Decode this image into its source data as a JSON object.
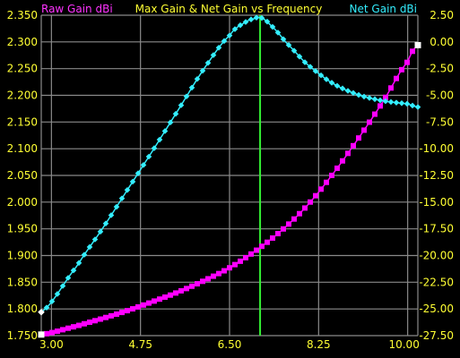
{
  "chart_data": {
    "type": "line",
    "title": "Max Gain & Net Gain vs Frequency",
    "left_axis_label": "Raw Gain dBi",
    "right_axis_label": "Net Gain dBi",
    "x_range": [
      2.8,
      10.2
    ],
    "x_ticks": [
      "3.00",
      "4.75",
      "6.50",
      "8.25",
      "10.00"
    ],
    "x_tick_values": [
      3.0,
      4.75,
      6.5,
      8.25,
      10.0
    ],
    "left_range": [
      1.75,
      2.35
    ],
    "left_ticks": [
      "2.350",
      "2.300",
      "2.250",
      "2.200",
      "2.150",
      "2.100",
      "2.050",
      "2.000",
      "1.950",
      "1.900",
      "1.850",
      "1.800",
      "1.750"
    ],
    "right_range": [
      -27.5,
      2.5
    ],
    "right_ticks": [
      "2.50",
      "0.00",
      "-2.50",
      "-5.00",
      "-7.50",
      "-10.00",
      "-12.50",
      "-15.00",
      "-17.50",
      "-20.00",
      "-22.50",
      "-25.00",
      "-27.50"
    ],
    "grid": true,
    "marker_x": 7.1,
    "series": [
      {
        "axis": "left",
        "color": "#ff00ff",
        "marker": "square",
        "x": [
          2.8,
          3.5,
          4.0,
          4.5,
          5.0,
          5.5,
          6.0,
          6.5,
          7.0,
          7.5,
          8.0,
          8.5,
          9.0,
          9.5,
          10.0,
          10.2
        ],
        "values": [
          1.752,
          1.768,
          1.782,
          1.797,
          1.814,
          1.832,
          1.853,
          1.877,
          1.908,
          1.945,
          1.991,
          2.049,
          2.115,
          2.186,
          2.263,
          2.294
        ]
      },
      {
        "axis": "right",
        "color": "#33eeff",
        "marker": "diamond",
        "x": [
          2.8,
          3.5,
          4.0,
          4.5,
          5.0,
          5.5,
          6.0,
          6.5,
          6.8,
          7.0,
          7.1,
          7.3,
          7.6,
          8.0,
          8.5,
          9.0,
          9.5,
          10.0,
          10.2
        ],
        "values": [
          -25.3,
          -21.0,
          -17.5,
          -13.8,
          -10.1,
          -6.3,
          -2.5,
          0.6,
          1.8,
          2.2,
          2.3,
          1.6,
          0.0,
          -2.0,
          -3.8,
          -4.9,
          -5.5,
          -5.8,
          -6.1
        ]
      }
    ],
    "end_markers": [
      {
        "axis": "left",
        "x": 2.8,
        "value": 1.752
      },
      {
        "axis": "left",
        "x": 10.2,
        "value": 2.294
      },
      {
        "axis": "right",
        "x": 2.8,
        "value": -25.3
      }
    ]
  }
}
